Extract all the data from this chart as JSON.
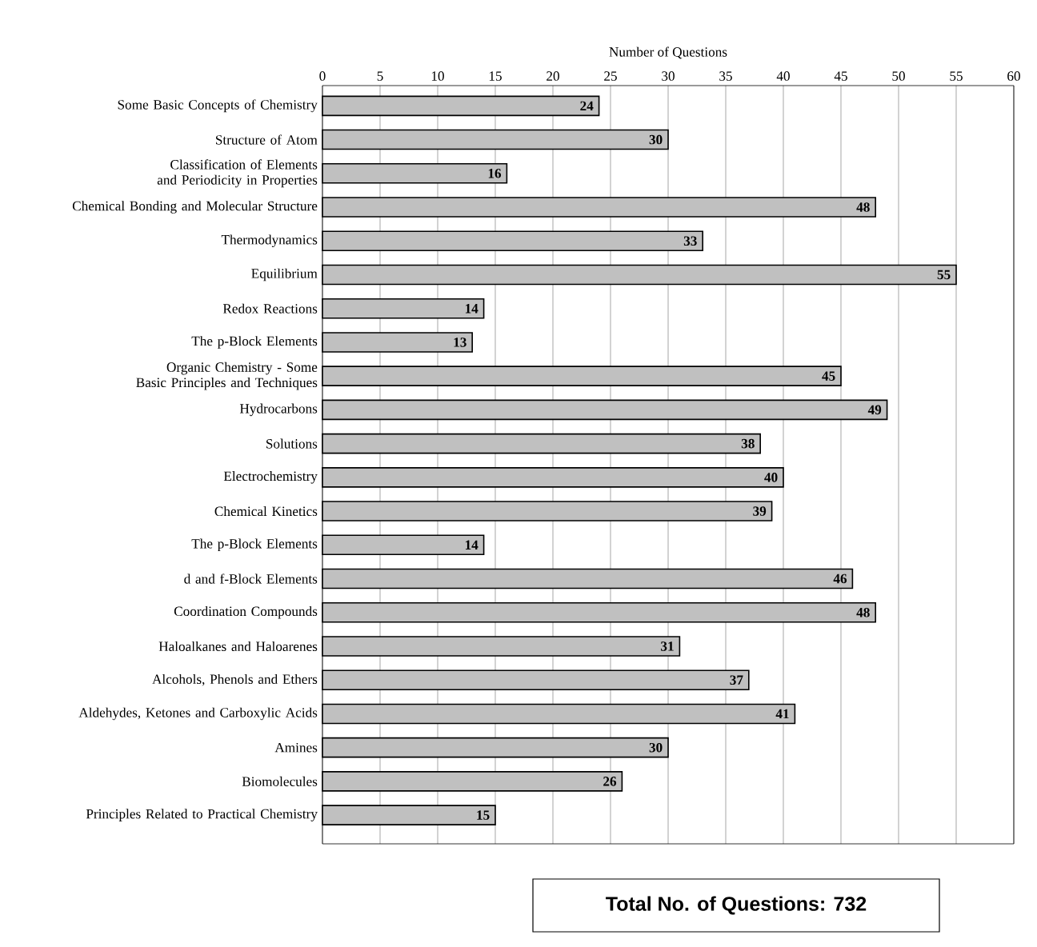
{
  "chart_data": {
    "type": "bar",
    "orientation": "horizontal",
    "xlabel": "Number of Questions",
    "categories": [
      "Some Basic Concepts of Chemistry",
      "Structure of Atom",
      "Classification of Elements and Periodicity in Properties",
      "Chemical Bonding and Molecular Structure",
      "Thermodynamics",
      "Equilibrium",
      "Redox Reactions",
      "The p-Block Elements",
      "Organic Chemistry - Some Basic Principles and Techniques",
      "Hydrocarbons",
      "Solutions",
      "Electrochemistry",
      "Chemical Kinetics",
      "The p-Block Elements",
      "d and f-Block Elements",
      "Coordination Compounds",
      "Haloalkanes and Haloarenes",
      "Alcohols, Phenols and Ethers",
      "Aldehydes, Ketones and Carboxylic Acids",
      "Amines",
      "Biomolecules",
      "Principles Related to Practical Chemistry"
    ],
    "values": [
      24,
      30,
      16,
      48,
      33,
      55,
      14,
      13,
      45,
      49,
      38,
      40,
      39,
      14,
      46,
      48,
      31,
      37,
      41,
      30,
      26,
      15
    ],
    "color": "#c0c0c0",
    "data_labels": true,
    "grid": "x",
    "xlim": [
      0,
      60
    ],
    "xticks": [
      0,
      5,
      10,
      15,
      20,
      25,
      30,
      35,
      40,
      45,
      50,
      55,
      60
    ],
    "annotations": [
      "Total No. of Questions:  732"
    ]
  }
}
